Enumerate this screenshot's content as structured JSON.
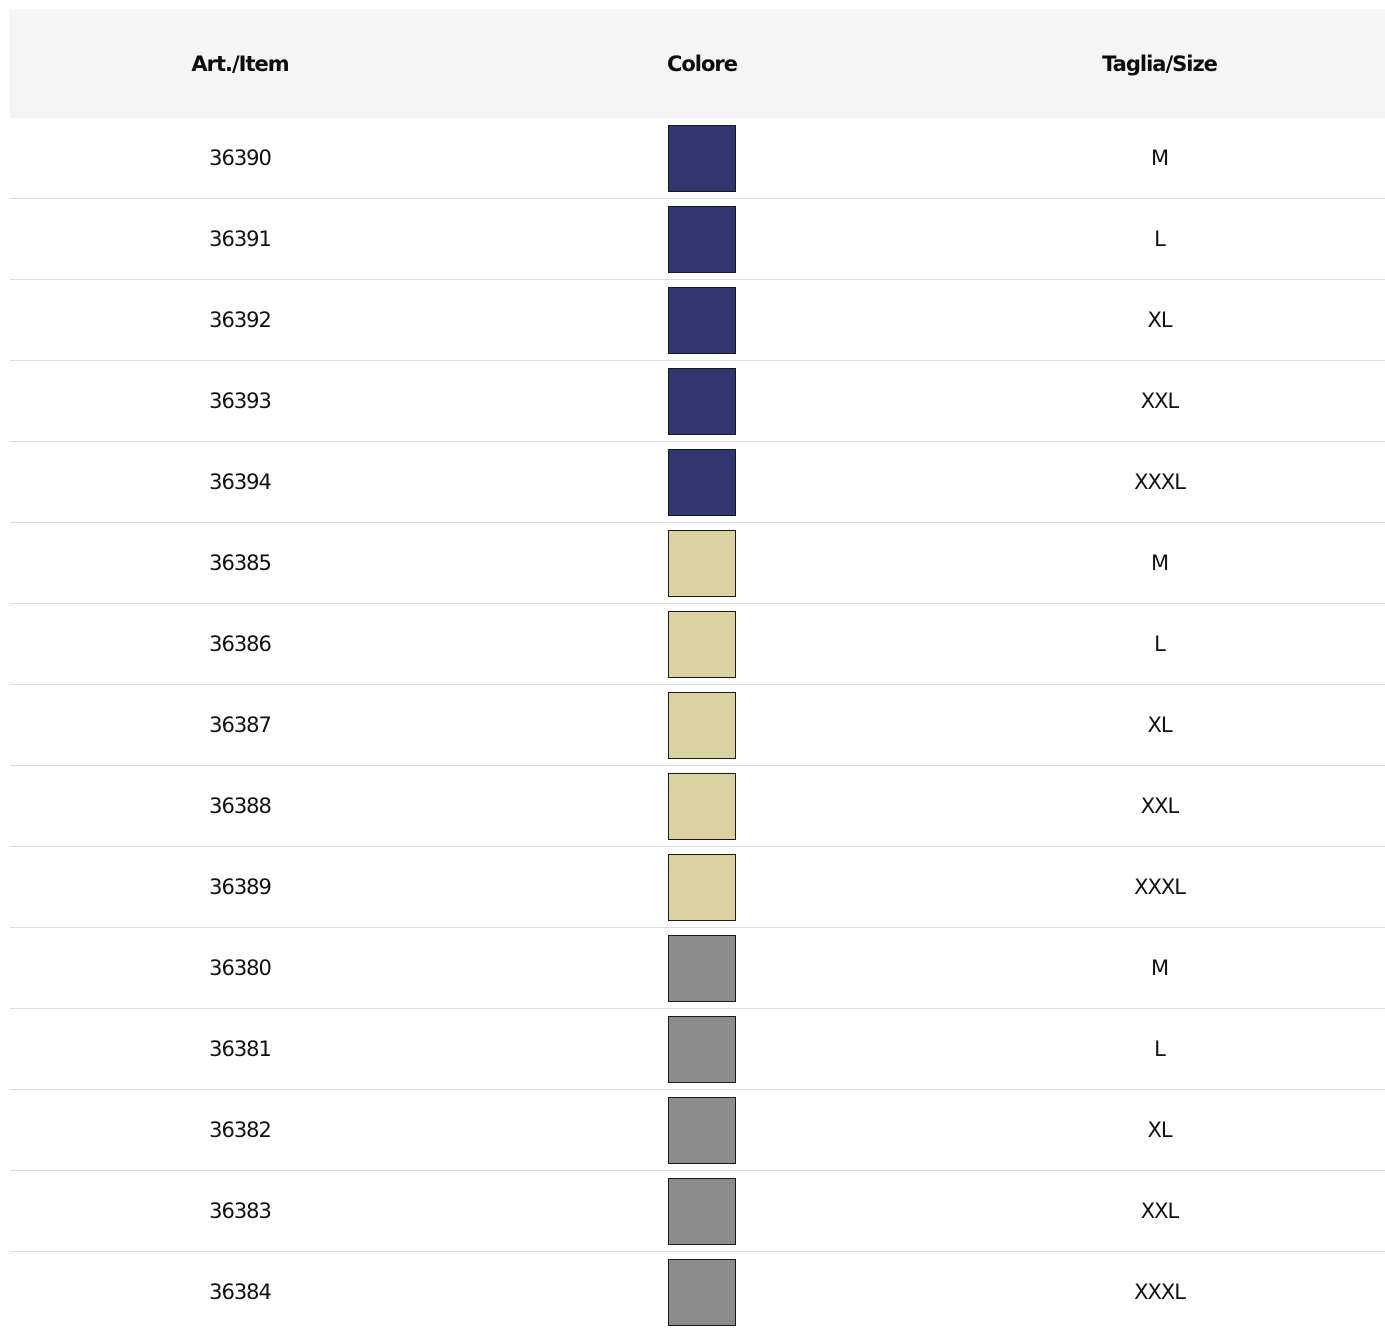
{
  "table": {
    "headers": {
      "item": "Art./Item",
      "color": "Colore",
      "size": "Taglia/Size"
    },
    "rows": [
      {
        "item": "36390",
        "color": "#30366f",
        "size": "M"
      },
      {
        "item": "36391",
        "color": "#30366f",
        "size": "L"
      },
      {
        "item": "36392",
        "color": "#30366f",
        "size": "XL"
      },
      {
        "item": "36393",
        "color": "#30366f",
        "size": "XXL"
      },
      {
        "item": "36394",
        "color": "#30366f",
        "size": "XXXL"
      },
      {
        "item": "36385",
        "color": "#dbd2a2",
        "size": "M"
      },
      {
        "item": "36386",
        "color": "#dbd2a2",
        "size": "L"
      },
      {
        "item": "36387",
        "color": "#dbd2a2",
        "size": "XL"
      },
      {
        "item": "36388",
        "color": "#dbd2a2",
        "size": "XXL"
      },
      {
        "item": "36389",
        "color": "#dbd2a2",
        "size": "XXXL"
      },
      {
        "item": "36380",
        "color": "#8c8c8c",
        "size": "M"
      },
      {
        "item": "36381",
        "color": "#8c8c8c",
        "size": "L"
      },
      {
        "item": "36382",
        "color": "#8c8c8c",
        "size": "XL"
      },
      {
        "item": "36383",
        "color": "#8c8c8c",
        "size": "XXL"
      },
      {
        "item": "36384",
        "color": "#8c8c8c",
        "size": "XXXL"
      }
    ]
  }
}
